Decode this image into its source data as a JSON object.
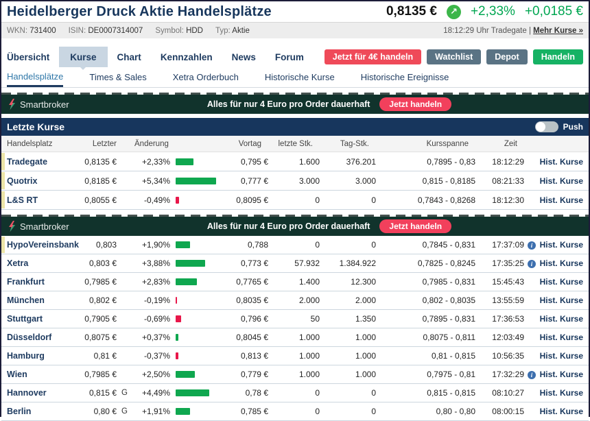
{
  "header": {
    "title": "Heidelberger Druck Aktie Handelsplätze",
    "price": "0,8135 €",
    "change_pct": "+2,33%",
    "change_abs": "+0,0185 €",
    "arrow_icon": "↗",
    "accent_green": "#00a651"
  },
  "infobar": {
    "items": [
      {
        "label": "WKN:",
        "value": "731400"
      },
      {
        "label": "ISIN:",
        "value": "DE0007314007"
      },
      {
        "label": "Symbol:",
        "value": "HDD"
      },
      {
        "label": "Typ:",
        "value": "Aktie"
      }
    ],
    "time_info": "18:12:29 Uhr Tradegate",
    "more_link": "Mehr Kurse »"
  },
  "nav": {
    "tabs": [
      {
        "label": "Übersicht",
        "active": false
      },
      {
        "label": "Kurse",
        "active": true
      },
      {
        "label": "Chart",
        "active": false
      },
      {
        "label": "Kennzahlen",
        "active": false
      },
      {
        "label": "News",
        "active": false
      },
      {
        "label": "Forum",
        "active": false
      }
    ],
    "actions": [
      {
        "label": "Jetzt für 4€ handeln",
        "color": "#ef4a59"
      },
      {
        "label": "Watchlist",
        "color": "#5a7384"
      },
      {
        "label": "Depot",
        "color": "#5a7384"
      },
      {
        "label": "Handeln",
        "color": "#16b264"
      }
    ]
  },
  "subnav": {
    "tabs": [
      {
        "label": "Handelsplätze",
        "active": true
      },
      {
        "label": "Times & Sales",
        "active": false
      },
      {
        "label": "Xetra Orderbuch",
        "active": false
      },
      {
        "label": "Historische Kurse",
        "active": false
      },
      {
        "label": "Historische Ereignisse",
        "active": false
      }
    ]
  },
  "banner": {
    "brand": "Smartbroker",
    "text": "Alles für nur 4 Euro pro Order dauerhaft",
    "button": "Jetzt handeln",
    "bg": "#11332c",
    "button_color": "#f2405c"
  },
  "section": {
    "title": "Letzte Kurse",
    "push_label": "Push",
    "push_on": false
  },
  "table": {
    "headers": [
      "Handelsplatz",
      "Letzter",
      "Änderung",
      "Vortag",
      "letzte Stk.",
      "Tag-Stk.",
      "Kursspanne",
      "Zeit"
    ],
    "hist_label": "Hist. Kurse",
    "bar_green": "#0fa74f",
    "bar_red": "#e8174a",
    "group1": [
      {
        "name": "Tradegate",
        "letzter": "0,8135 €",
        "g": "",
        "change": "+2,33%",
        "vortag": "0,795 €",
        "letzte_stk": "1.600",
        "tag_stk": "376.201",
        "kursspanne": "0,7895 - 0,83",
        "zeit": "18:12:29",
        "info": false,
        "highlight": true
      },
      {
        "name": "Quotrix",
        "letzter": "0,8185 €",
        "g": "",
        "change": "+5,34%",
        "vortag": "0,777 €",
        "letzte_stk": "3.000",
        "tag_stk": "3.000",
        "kursspanne": "0,815 - 0,8185",
        "zeit": "08:21:33",
        "info": false,
        "highlight": true
      },
      {
        "name": "L&S RT",
        "letzter": "0,8055 €",
        "g": "",
        "change": "-0,49%",
        "vortag": "0,8095 €",
        "letzte_stk": "0",
        "tag_stk": "0",
        "kursspanne": "0,7843 - 0,8268",
        "zeit": "18:12:30",
        "info": false,
        "highlight": true
      }
    ],
    "group2": [
      {
        "name": "HypoVereinsbank",
        "letzter": "0,803",
        "g": "",
        "change": "+1,90%",
        "vortag": "0,788",
        "letzte_stk": "0",
        "tag_stk": "0",
        "kursspanne": "0,7845 - 0,831",
        "zeit": "17:37:09",
        "info": true,
        "highlight": true
      },
      {
        "name": "Xetra",
        "letzter": "0,803 €",
        "g": "",
        "change": "+3,88%",
        "vortag": "0,773 €",
        "letzte_stk": "57.932",
        "tag_stk": "1.384.922",
        "kursspanne": "0,7825 - 0,8245",
        "zeit": "17:35:25",
        "info": true,
        "highlight": false
      },
      {
        "name": "Frankfurt",
        "letzter": "0,7985 €",
        "g": "",
        "change": "+2,83%",
        "vortag": "0,7765 €",
        "letzte_stk": "1.400",
        "tag_stk": "12.300",
        "kursspanne": "0,7985 - 0,831",
        "zeit": "15:45:43",
        "info": false,
        "highlight": false
      },
      {
        "name": "München",
        "letzter": "0,802 €",
        "g": "",
        "change": "-0,19%",
        "vortag": "0,8035 €",
        "letzte_stk": "2.000",
        "tag_stk": "2.000",
        "kursspanne": "0,802 - 0,8035",
        "zeit": "13:55:59",
        "info": false,
        "highlight": false
      },
      {
        "name": "Stuttgart",
        "letzter": "0,7905 €",
        "g": "",
        "change": "-0,69%",
        "vortag": "0,796 €",
        "letzte_stk": "50",
        "tag_stk": "1.350",
        "kursspanne": "0,7895 - 0,831",
        "zeit": "17:36:53",
        "info": false,
        "highlight": false
      },
      {
        "name": "Düsseldorf",
        "letzter": "0,8075 €",
        "g": "",
        "change": "+0,37%",
        "vortag": "0,8045 €",
        "letzte_stk": "1.000",
        "tag_stk": "1.000",
        "kursspanne": "0,8075 - 0,811",
        "zeit": "12:03:49",
        "info": false,
        "highlight": false
      },
      {
        "name": "Hamburg",
        "letzter": "0,81 €",
        "g": "",
        "change": "-0,37%",
        "vortag": "0,813 €",
        "letzte_stk": "1.000",
        "tag_stk": "1.000",
        "kursspanne": "0,81 - 0,815",
        "zeit": "10:56:35",
        "info": false,
        "highlight": false
      },
      {
        "name": "Wien",
        "letzter": "0,7985 €",
        "g": "",
        "change": "+2,50%",
        "vortag": "0,779 €",
        "letzte_stk": "1.000",
        "tag_stk": "1.000",
        "kursspanne": "0,7975 - 0,81",
        "zeit": "17:32:29",
        "info": true,
        "highlight": false
      },
      {
        "name": "Hannover",
        "letzter": "0,815 €",
        "g": "G",
        "change": "+4,49%",
        "vortag": "0,78 €",
        "letzte_stk": "0",
        "tag_stk": "0",
        "kursspanne": "0,815 - 0,815",
        "zeit": "08:10:27",
        "info": false,
        "highlight": false
      },
      {
        "name": "Berlin",
        "letzter": "0,80 €",
        "g": "G",
        "change": "+1,91%",
        "vortag": "0,785 €",
        "letzte_stk": "0",
        "tag_stk": "0",
        "kursspanne": "0,80 - 0,80",
        "zeit": "08:00:15",
        "info": false,
        "highlight": false
      }
    ]
  }
}
